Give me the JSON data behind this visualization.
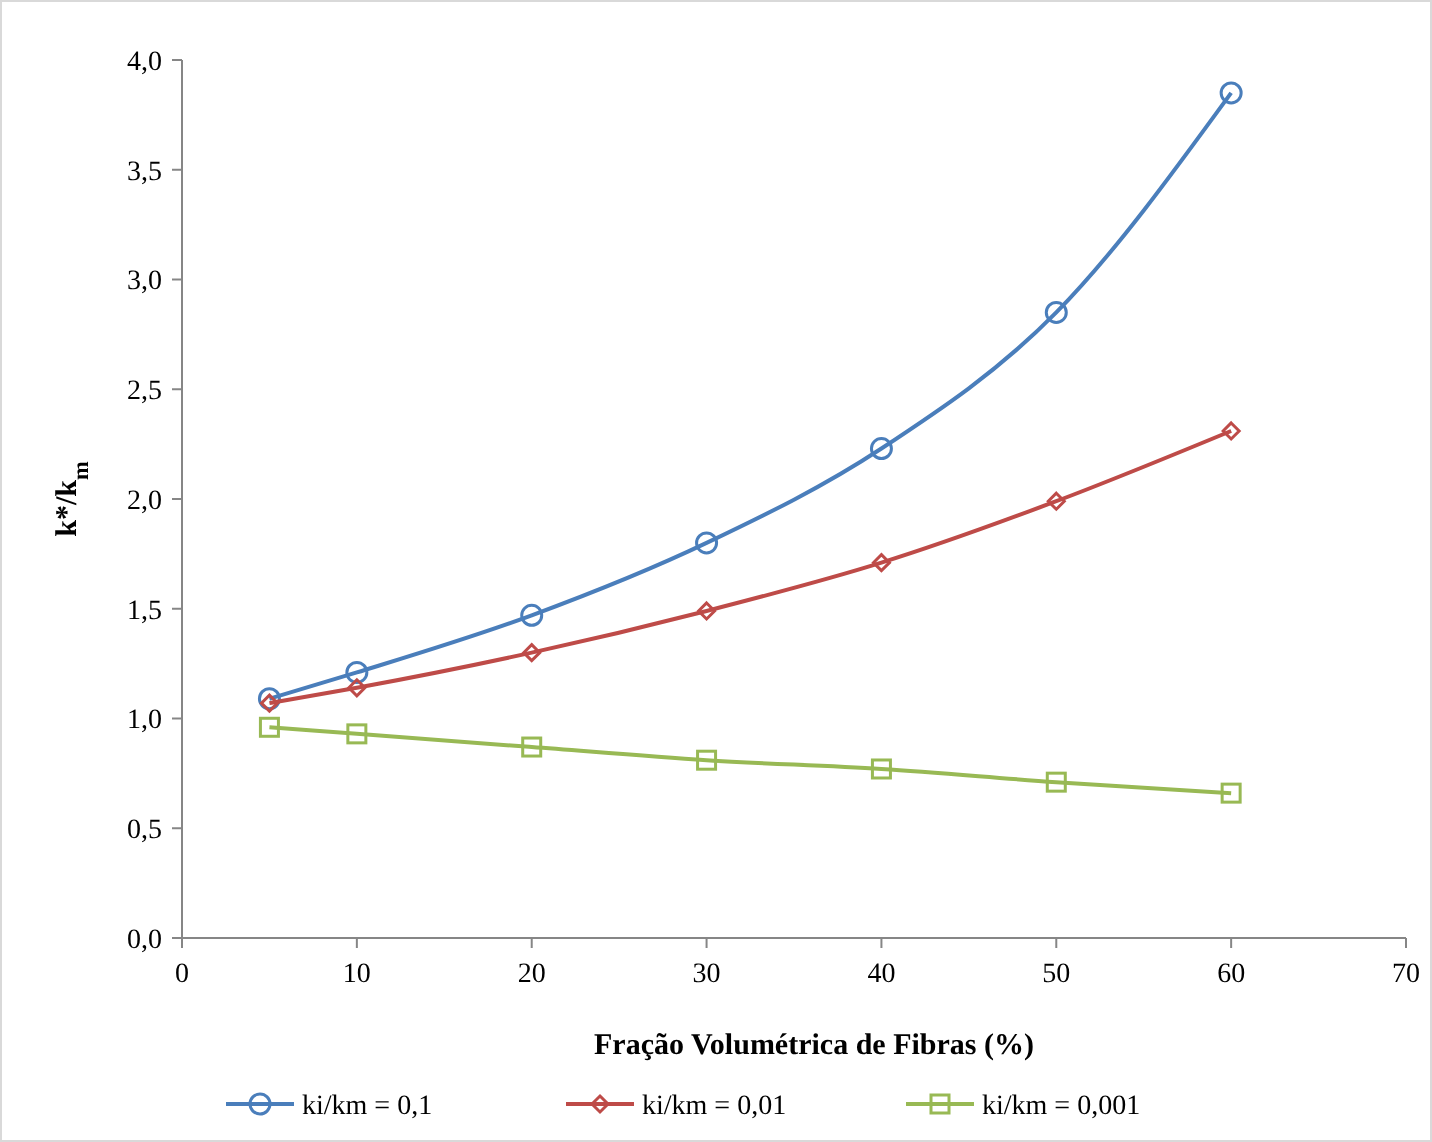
{
  "chart_data": {
    "type": "line",
    "xlabel": "Fração Volumétrica  de Fibras (%)",
    "ylabel": "k*/k$_{m}$",
    "x": [
      5,
      10,
      20,
      30,
      40,
      50,
      60
    ],
    "series": [
      {
        "name": "ki/km = 0,1",
        "color": "#4a7ebb",
        "marker": "circle",
        "values": [
          1.09,
          1.21,
          1.47,
          1.8,
          2.23,
          2.85,
          3.85
        ]
      },
      {
        "name": "ki/km = 0,01",
        "color": "#be4b48",
        "marker": "diamond",
        "values": [
          1.07,
          1.14,
          1.3,
          1.49,
          1.71,
          1.99,
          2.31
        ]
      },
      {
        "name": "ki/km = 0,001",
        "color": "#98b954",
        "marker": "square",
        "values": [
          0.96,
          0.93,
          0.87,
          0.81,
          0.77,
          0.71,
          0.66
        ]
      }
    ],
    "xlim": [
      0,
      70
    ],
    "xticks": [
      0,
      10,
      20,
      30,
      40,
      50,
      60,
      70
    ],
    "ylim": [
      0,
      4
    ],
    "yticks": [
      {
        "value": 0,
        "label": "0,0"
      },
      {
        "value": 0.5,
        "label": "0,5"
      },
      {
        "value": 1,
        "label": "1,0"
      },
      {
        "value": 1.5,
        "label": "1,5"
      },
      {
        "value": 2,
        "label": "2,0"
      },
      {
        "value": 2.5,
        "label": "2,5"
      },
      {
        "value": 3,
        "label": "3,0"
      },
      {
        "value": 3.5,
        "label": "3,5"
      },
      {
        "value": 4,
        "label": "4,0"
      }
    ],
    "grid": false,
    "legend": "bottom",
    "line_style": "solid"
  }
}
